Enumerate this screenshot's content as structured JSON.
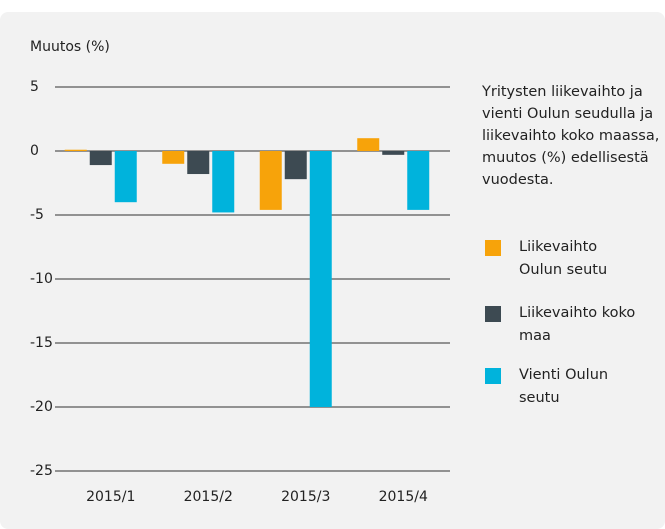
{
  "chart_data": {
    "type": "bar",
    "y_label": "Muutos (%)",
    "subtitle": "Yritysten liikevaihto ja vienti Oulun seudulla ja liikevaihto koko maassa, muutos (%) edellisestä vuodesta.",
    "categories": [
      "2015/1",
      "2015/2",
      "2015/3",
      "2015/4"
    ],
    "series": [
      {
        "name": "Liikevaihto Oulun seutu",
        "color": "#f7a30a",
        "values": [
          0.1,
          -1.0,
          -4.6,
          1.0
        ]
      },
      {
        "name": "Liikevaihto koko maa",
        "color": "#3d4a52",
        "values": [
          -1.1,
          -1.8,
          -2.2,
          -0.3
        ]
      },
      {
        "name": "Vienti Oulun seutu",
        "color": "#00b3dc",
        "values": [
          -4.0,
          -4.8,
          -20.0,
          -4.6
        ]
      }
    ],
    "ylim": [
      -25,
      5
    ],
    "yticks": [
      5,
      0,
      -5,
      -10,
      -15,
      -20,
      -25
    ],
    "grid": true,
    "legend": "right"
  }
}
